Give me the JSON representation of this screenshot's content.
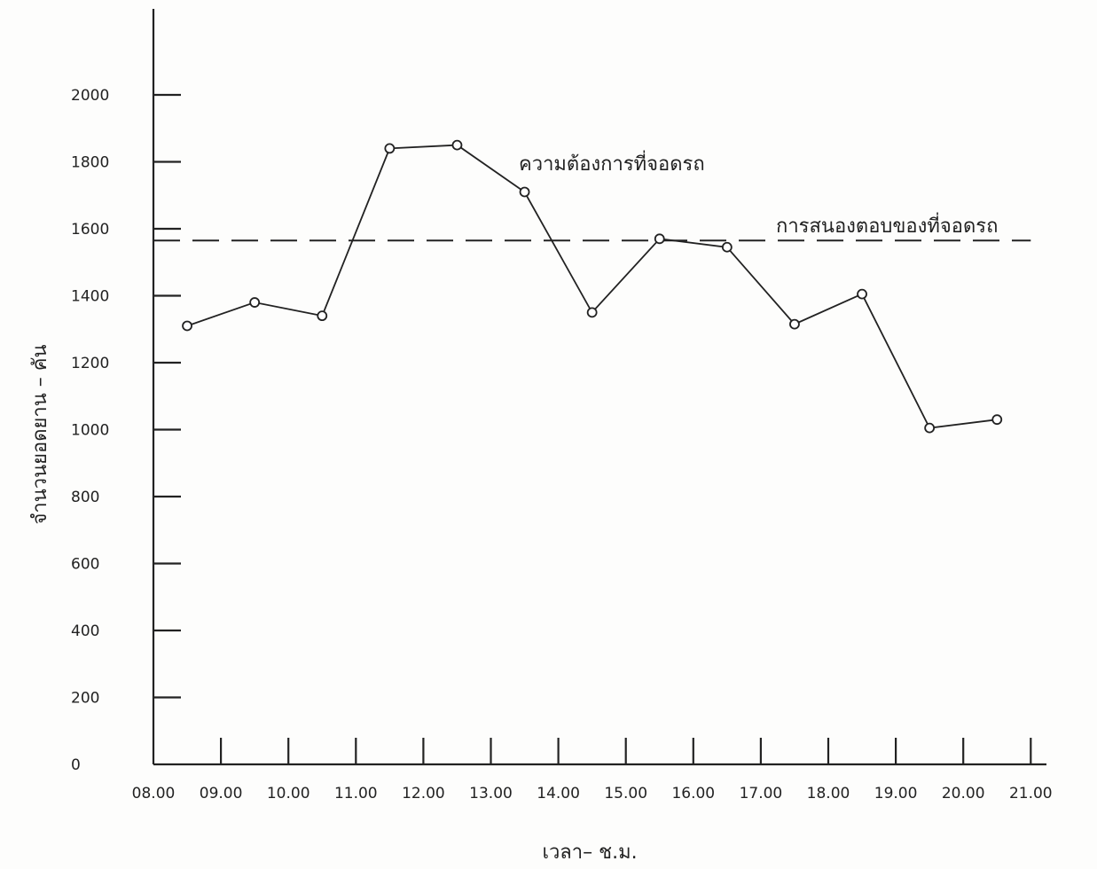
{
  "chart_data": {
    "type": "line",
    "xlabel": "เวลา– ช.ม.",
    "ylabel": "จำนวนยอดยาน – คัน",
    "ylim": [
      0,
      2000
    ],
    "yticks": [
      0,
      200,
      400,
      600,
      800,
      1000,
      1200,
      1400,
      1600,
      1800,
      2000
    ],
    "y_tick_labels": [
      "0",
      "200",
      "400",
      "600",
      "800",
      "1000",
      "1200",
      "1400",
      "1600",
      "1800",
      "2000"
    ],
    "x_tick_labels": [
      "08.00",
      "09.00",
      "10.00",
      "11.00",
      "12.00",
      "13.00",
      "14.00",
      "15.00",
      "16.00",
      "17.00",
      "18.00",
      "19.00",
      "20.00",
      "21.00"
    ],
    "x_tick_values": [
      8,
      9,
      10,
      11,
      12,
      13,
      14,
      15,
      16,
      17,
      18,
      19,
      20,
      21
    ],
    "xlim": [
      8,
      21
    ],
    "grid": false,
    "series": [
      {
        "name": "ความต้องการที่จอดรถ",
        "style": "solid-with-circle-markers",
        "x": [
          8.5,
          9.5,
          10.5,
          11.5,
          12.5,
          13.5,
          14.5,
          15.5,
          16.5,
          17.5,
          18.5,
          19.5,
          20.5
        ],
        "values": [
          1310,
          1380,
          1340,
          1840,
          1850,
          1710,
          1350,
          1570,
          1545,
          1315,
          1405,
          1005,
          1030
        ]
      },
      {
        "name": "การสนองตอบของที่จอดรถ",
        "style": "dashed",
        "x": [
          8,
          21
        ],
        "values": [
          1565,
          1565
        ]
      }
    ]
  }
}
